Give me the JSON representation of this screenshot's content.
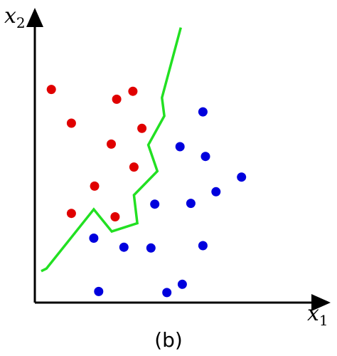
{
  "figure": {
    "x_axis_label": "x",
    "x_axis_sub": "1",
    "y_axis_label": "x",
    "y_axis_sub": "2",
    "caption": "(b)"
  },
  "colors": {
    "class_a": "#e00000",
    "class_b": "#0000dd",
    "boundary": "#22e022",
    "axis": "#000000"
  },
  "chart_data": {
    "type": "scatter",
    "xlabel": "x1",
    "ylabel": "x2",
    "xlim": [
      0,
      100
    ],
    "ylim": [
      0,
      100
    ],
    "series": [
      {
        "color": "#e00000",
        "points": [
          [
            6.4,
            82.7
          ],
          [
            14.2,
            69.6
          ],
          [
            31.8,
            78.9
          ],
          [
            38.1,
            82.0
          ],
          [
            41.6,
            67.6
          ],
          [
            29.7,
            61.5
          ],
          [
            38.5,
            52.6
          ],
          [
            23.2,
            45.2
          ],
          [
            14.2,
            34.6
          ],
          [
            31.2,
            33.3
          ]
        ]
      },
      {
        "color": "#0000dd",
        "points": [
          [
            65.3,
            74.0
          ],
          [
            56.4,
            60.5
          ],
          [
            66.3,
            56.7
          ],
          [
            80.3,
            48.7
          ],
          [
            70.4,
            43.0
          ],
          [
            46.6,
            38.2
          ],
          [
            60.6,
            38.5
          ],
          [
            22.9,
            25.0
          ],
          [
            34.6,
            21.5
          ],
          [
            45.1,
            21.2
          ],
          [
            65.3,
            22.1
          ],
          [
            24.8,
            4.3
          ],
          [
            51.3,
            3.9
          ],
          [
            57.3,
            7.1
          ]
        ]
      },
      {
        "type": "line",
        "color": "#22e022",
        "points": [
          [
            2.5,
            12.2
          ],
          [
            4.5,
            13.2
          ],
          [
            22.9,
            36.2
          ],
          [
            29.9,
            27.6
          ],
          [
            39.8,
            30.8
          ],
          [
            38.5,
            41.7
          ],
          [
            47.6,
            51.0
          ],
          [
            44.1,
            61.2
          ],
          [
            50.3,
            72.4
          ],
          [
            49.4,
            79.5
          ],
          [
            56.7,
            106.7
          ]
        ]
      }
    ]
  }
}
